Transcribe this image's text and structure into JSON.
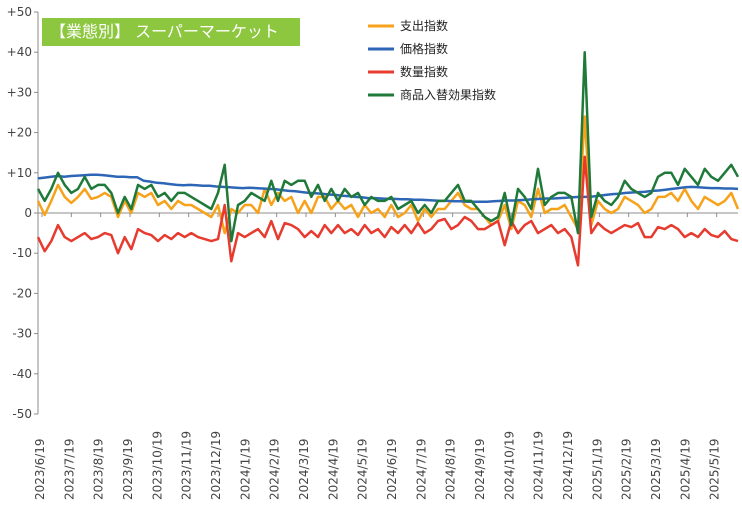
{
  "chart_data": {
    "type": "line",
    "title": "【業態別】 スーパーマーケット",
    "xlabel": "",
    "ylabel": "",
    "ylim": [
      -50,
      50
    ],
    "yticks": [
      "+50",
      "+40",
      "+30",
      "+20",
      "+10",
      "0",
      "-10",
      "-20",
      "-30",
      "-40",
      "-50"
    ],
    "ytick_values": [
      50,
      40,
      30,
      20,
      10,
      0,
      -10,
      -20,
      -30,
      -40,
      -50
    ],
    "xtick_labels": [
      "2023/6/19",
      "2023/7/19",
      "2023/8/19",
      "2023/9/19",
      "2023/10/19",
      "2023/11/19",
      "2023/12/19",
      "2024/1/19",
      "2024/2/19",
      "2024/3/19",
      "2024/4/19",
      "2024/5/19",
      "2024/6/19",
      "2024/7/19",
      "2024/8/19",
      "2024/9/19",
      "2024/10/19",
      "2024/11/19",
      "2024/12/19",
      "2025/1/19",
      "2025/2/19",
      "2025/3/19",
      "2025/4/19",
      "2025/5/19"
    ],
    "grid": false,
    "legend_position": "top-center",
    "series": [
      {
        "name": "支出指数",
        "color": "#f7a21b",
        "values": [
          3,
          -0.5,
          3,
          7,
          4,
          2.5,
          4,
          6,
          3.5,
          4,
          5,
          4,
          -1,
          3,
          0,
          5,
          4,
          5,
          2,
          3,
          1,
          3,
          2,
          2,
          1,
          0,
          -1,
          2,
          -5,
          1,
          0,
          2,
          2,
          0,
          6,
          2,
          5,
          3,
          4,
          0,
          3,
          0,
          4,
          4,
          1,
          3,
          1,
          2,
          -1,
          2,
          0,
          1,
          -1,
          2,
          -1,
          0,
          2,
          -2,
          1,
          -1,
          1,
          1,
          3,
          5,
          2,
          1,
          1,
          -1,
          -3,
          -2,
          2,
          -4,
          3,
          2,
          -1,
          6,
          0,
          1,
          1,
          2,
          -1,
          -4,
          24,
          -3,
          3,
          1,
          0,
          1,
          4,
          3,
          2,
          0,
          1,
          4,
          4,
          5,
          3,
          6,
          3,
          1,
          4,
          3,
          2,
          3,
          5,
          1
        ]
      },
      {
        "name": "価格指数",
        "color": "#2e66b6",
        "values": [
          8.6,
          8.8,
          9,
          9.2,
          9,
          9.2,
          9.3,
          9.4,
          9.5,
          9.5,
          9.4,
          9.2,
          9,
          9,
          8.9,
          8.9,
          8,
          7.8,
          7.5,
          7.4,
          7.2,
          7,
          6.9,
          7,
          6.9,
          6.8,
          6.8,
          6.6,
          6.5,
          6.4,
          6.3,
          6.2,
          6.3,
          6.2,
          6.1,
          6,
          5.9,
          5.7,
          5.5,
          5.4,
          5.2,
          5,
          4.9,
          4.8,
          4.6,
          4.5,
          4.3,
          4.2,
          4,
          3.9,
          3.7,
          3.7,
          3.6,
          3.5,
          3.5,
          3.4,
          3.4,
          3.3,
          3.3,
          3.2,
          3.1,
          3,
          3,
          2.9,
          2.9,
          2.8,
          2.8,
          2.8,
          2.8,
          2.9,
          3,
          3.1,
          3.1,
          3.2,
          3.3,
          3.4,
          3.5,
          3.6,
          3.6,
          3.7,
          3.8,
          3.9,
          4,
          4,
          4.1,
          4.3,
          4.5,
          4.7,
          4.8,
          5,
          5.1,
          5.2,
          5.3,
          5.5,
          5.6,
          5.8,
          6,
          6.2,
          6.4,
          6.5,
          6.4,
          6.3,
          6.2,
          6.2,
          6.1,
          6.1,
          6.0
        ]
      },
      {
        "name": "数量指数",
        "color": "#e63b2e",
        "values": [
          -6,
          -9.5,
          -7,
          -3,
          -6,
          -7,
          -6,
          -5,
          -6.5,
          -6,
          -5,
          -5.5,
          -10,
          -6,
          -9,
          -4,
          -5,
          -5.5,
          -7,
          -5.5,
          -6.5,
          -5,
          -6,
          -5,
          -6,
          -6.5,
          -7,
          -6.5,
          2,
          -12,
          -5,
          -6,
          -5,
          -4,
          -6,
          -2,
          -6.5,
          -2.5,
          -3,
          -4,
          -6,
          -4.5,
          -6,
          -3,
          -5,
          -3,
          -5,
          -4,
          -5.5,
          -3,
          -5,
          -4,
          -6,
          -3.5,
          -5,
          -3,
          -5,
          -2.5,
          -5,
          -4,
          -2,
          -1.5,
          -4,
          -3,
          -1,
          -2,
          -4,
          -4,
          -3,
          -2,
          -8,
          -2,
          -5,
          -3,
          -2,
          -5,
          -4,
          -3,
          -5,
          -4,
          -6,
          -13,
          14,
          -5,
          -2.5,
          -4,
          -5,
          -4,
          -3,
          -3.5,
          -2.5,
          -6,
          -6,
          -3.5,
          -4,
          -3,
          -4,
          -6,
          -5,
          -6,
          -4,
          -5.5,
          -6,
          -4.5,
          -6.5,
          -7
        ]
      },
      {
        "name": "商品入替効果指数",
        "color": "#1f7a3a",
        "values": [
          6,
          3,
          6,
          10,
          7,
          5,
          6,
          9,
          6,
          7,
          7,
          5,
          0,
          4,
          1,
          7,
          6,
          7,
          4,
          5,
          3,
          5,
          5,
          4,
          3,
          2,
          1,
          5,
          12,
          -7,
          2,
          3,
          5,
          4,
          3,
          8,
          3,
          8,
          7,
          8,
          8,
          4,
          7,
          3,
          6,
          3,
          6,
          4,
          5,
          2,
          4,
          3,
          3,
          4,
          1,
          2,
          3,
          0,
          2,
          0,
          3,
          3,
          5,
          7,
          3,
          3,
          1,
          -1,
          -2,
          -1,
          5,
          -3,
          6,
          4,
          1,
          11,
          2,
          4,
          5,
          5,
          4,
          -5,
          40,
          -1,
          5,
          3,
          2,
          4,
          8,
          6,
          5,
          4,
          5,
          9,
          10,
          10,
          7,
          11,
          9,
          7,
          11,
          9,
          8,
          10,
          12,
          9
        ]
      }
    ]
  }
}
